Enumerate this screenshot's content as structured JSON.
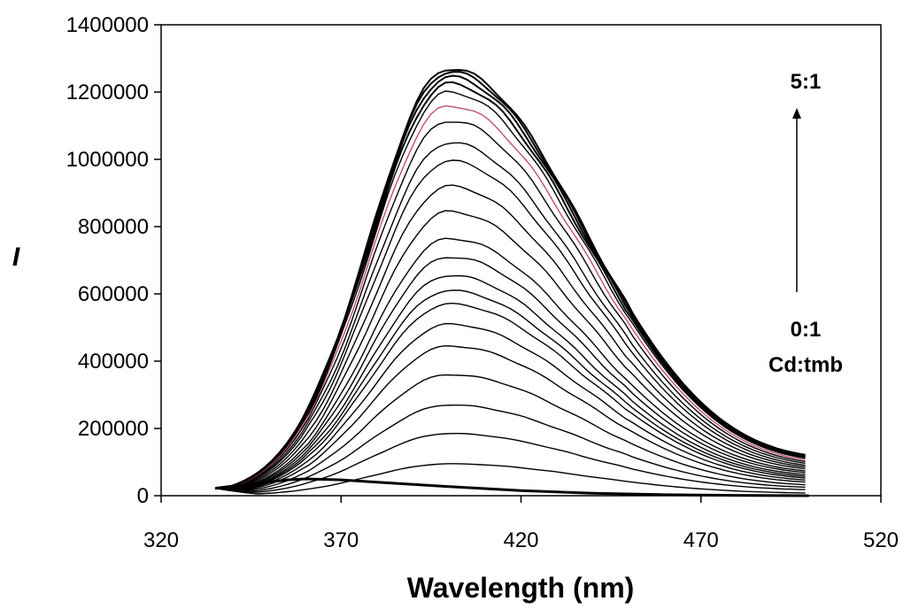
{
  "chart_data": {
    "type": "line",
    "title": "",
    "xlabel": "Wavelength (nm)",
    "ylabel": "I",
    "xlim": [
      320,
      520
    ],
    "ylim": [
      0,
      1400000
    ],
    "x_ticks": [
      320,
      370,
      420,
      470,
      520
    ],
    "y_ticks": [
      0,
      200000,
      400000,
      600000,
      800000,
      1000000,
      1200000,
      1400000
    ],
    "x_tick_labels": [
      "320",
      "370",
      "420",
      "470",
      "520"
    ],
    "y_tick_labels": [
      "0",
      "200000",
      "400000",
      "600000",
      "800000",
      "1000000",
      "1200000",
      "1400000"
    ],
    "grid": false,
    "legend": "none",
    "line_color": "#000000",
    "highlight_color": "#c0506e",
    "x_start": 335,
    "x_end": 500,
    "baseline_series": {
      "peak_x": 360,
      "peak_value": 50000,
      "x": [
        335,
        345,
        355,
        360,
        370,
        380,
        400,
        420,
        440,
        460,
        480,
        500
      ],
      "values": [
        22000,
        35000,
        47000,
        50000,
        47000,
        40000,
        27000,
        15000,
        7000,
        3000,
        1000,
        0
      ]
    },
    "titration_series": {
      "peak_x": 400,
      "peak_values": [
        95000,
        185000,
        270000,
        360000,
        445000,
        510000,
        570000,
        610000,
        655000,
        710000,
        765000,
        845000,
        920000,
        995000,
        1050000,
        1115000,
        1160000,
        1200000,
        1225000,
        1245000,
        1260000,
        1270000
      ],
      "values_at_500": [
        8000,
        18000,
        25000,
        32000,
        40000,
        46000,
        52000,
        57000,
        62000,
        68000,
        73000,
        79000,
        84000,
        89000,
        95000,
        100000,
        105000,
        110000,
        112000,
        115000,
        117000,
        120000
      ]
    },
    "annotations": {
      "top_ratio": "5:1",
      "bottom_ratio": "0:1",
      "ratio_label": "Cd:tmb"
    }
  }
}
